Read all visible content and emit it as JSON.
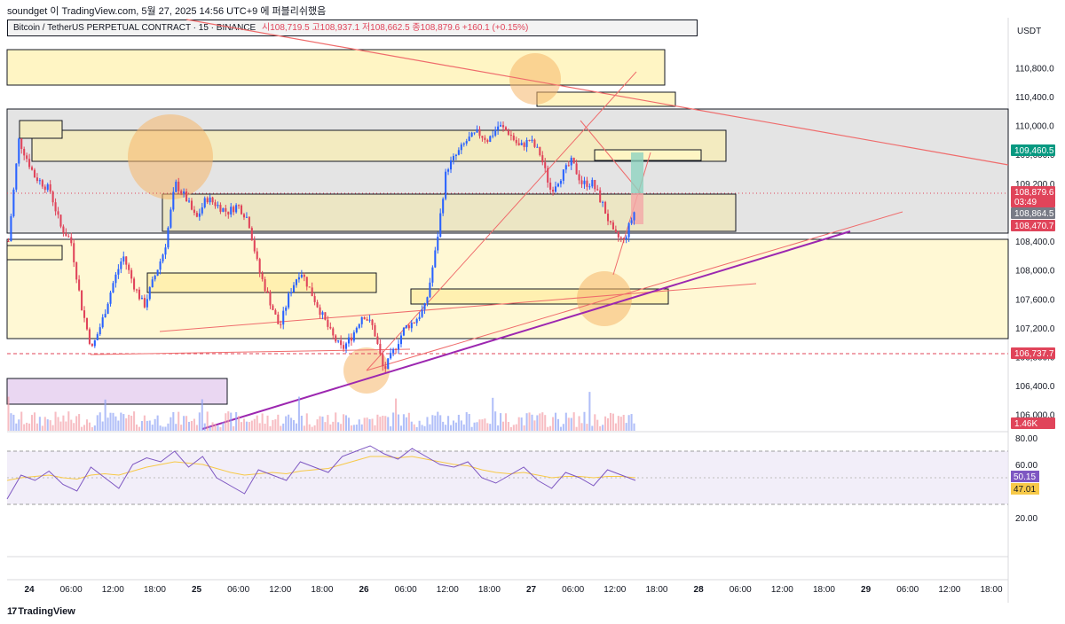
{
  "header": {
    "attribution": "soundget 이 TradingView.com, 5월 27, 2025 14:56 UTC+9 에 퍼블리쉬했음",
    "symbol": "Bitcoin / TetherUS PERPETUAL CONTRACT · 15 · BINANCE",
    "ohlc": "시108,719.5  고108,937.1  저108,662.5  종108,879.6  +160.1 (+0.15%)"
  },
  "price_axis": {
    "currency": "USDT",
    "ticks": [
      "110,800.0",
      "110,400.0",
      "110,000.0",
      "109,600.0",
      "109,200.0",
      "108,800.0",
      "108,400.0",
      "108,000.0",
      "107,600.0",
      "107,200.0",
      "106,800.0",
      "106,400.0",
      "106,000.0"
    ],
    "badges": [
      {
        "value": "109,460.5",
        "color": "#089981"
      },
      {
        "value": "108,879.6",
        "color": "#e0445a"
      },
      {
        "value": "03:49",
        "color": "#e0445a"
      },
      {
        "value": "108,864.5",
        "color": "#787b86"
      },
      {
        "value": "108,470.7",
        "color": "#e0445a"
      },
      {
        "value": "106,737.7",
        "color": "#e0445a"
      },
      {
        "value": "1.46K",
        "color": "#e0445a"
      }
    ]
  },
  "rsi_axis": {
    "ticks": [
      "80.00",
      "60.00",
      "20.00"
    ],
    "badges": [
      {
        "value": "50.15",
        "color": "#7e57c2"
      },
      {
        "value": "47.01",
        "color": "#f7c948"
      }
    ]
  },
  "time_axis": {
    "labels": [
      "24",
      "06:00",
      "12:00",
      "18:00",
      "25",
      "06:00",
      "12:00",
      "18:00",
      "26",
      "06:00",
      "12:00",
      "18:00",
      "27",
      "06:00",
      "12:00",
      "18:00",
      "28",
      "06:00",
      "12:00",
      "18:00",
      "29",
      "06:00",
      "12:00",
      "18:00"
    ]
  },
  "footer": {
    "logo": "TradingView",
    "logo_icon": "17"
  },
  "colors": {
    "bull": "#2962ff",
    "bear": "#e0445a",
    "zone_yellow": "#fff5c4",
    "zone_gray": "#e4e4e4",
    "trendline": "#ef6c6c",
    "purple": "#9c27b0",
    "rsi": "#7e57c2",
    "rsi_ma": "#f7c948"
  },
  "chart_data": {
    "type": "candlestick",
    "symbol": "Bitcoin / TetherUS PERPETUAL CONTRACT",
    "interval": "15",
    "exchange": "BINANCE",
    "ylim": [
      105900,
      111000
    ],
    "last_close": 108879.6,
    "key_levels": [
      106737.7,
      108470.7,
      108864.5,
      109460.5
    ],
    "price_path": [
      [
        0,
        108400
      ],
      [
        2,
        109800
      ],
      [
        5,
        109300
      ],
      [
        8,
        109100
      ],
      [
        10,
        108600
      ],
      [
        12,
        108400
      ],
      [
        14,
        107500
      ],
      [
        16,
        106900
      ],
      [
        18,
        107300
      ],
      [
        20,
        107800
      ],
      [
        22,
        108200
      ],
      [
        24,
        107800
      ],
      [
        26,
        107500
      ],
      [
        28,
        107900
      ],
      [
        30,
        108300
      ],
      [
        32,
        109200
      ],
      [
        34,
        109000
      ],
      [
        36,
        108700
      ],
      [
        38,
        109000
      ],
      [
        40,
        108900
      ],
      [
        42,
        108800
      ],
      [
        44,
        108900
      ],
      [
        46,
        108700
      ],
      [
        48,
        108000
      ],
      [
        50,
        107600
      ],
      [
        52,
        107200
      ],
      [
        54,
        107700
      ],
      [
        56,
        108000
      ],
      [
        58,
        107700
      ],
      [
        60,
        107400
      ],
      [
        62,
        107100
      ],
      [
        64,
        106900
      ],
      [
        66,
        107100
      ],
      [
        68,
        107400
      ],
      [
        70,
        107200
      ],
      [
        72,
        106600
      ],
      [
        74,
        106900
      ],
      [
        76,
        107200
      ],
      [
        78,
        107300
      ],
      [
        80,
        107500
      ],
      [
        82,
        108300
      ],
      [
        84,
        109400
      ],
      [
        86,
        109600
      ],
      [
        88,
        109800
      ],
      [
        90,
        109900
      ],
      [
        92,
        109800
      ],
      [
        94,
        110000
      ],
      [
        96,
        109900
      ],
      [
        98,
        109700
      ],
      [
        100,
        109800
      ],
      [
        102,
        109600
      ],
      [
        104,
        109100
      ],
      [
        106,
        109300
      ],
      [
        108,
        109500
      ],
      [
        110,
        109200
      ],
      [
        112,
        109200
      ],
      [
        114,
        108900
      ],
      [
        116,
        108500
      ],
      [
        118,
        108400
      ],
      [
        120,
        108800
      ]
    ],
    "rsi": {
      "ylim": [
        10,
        90
      ],
      "bands": [
        70,
        30
      ],
      "values": [
        34,
        52,
        48,
        55,
        45,
        40,
        58,
        50,
        42,
        60,
        65,
        62,
        70,
        58,
        66,
        50,
        44,
        38,
        56,
        52,
        48,
        62,
        58,
        54,
        66,
        70,
        74,
        68,
        64,
        72,
        66,
        60,
        58,
        62,
        50,
        46,
        52,
        58,
        48,
        42,
        54,
        50,
        44,
        56,
        52,
        48
      ],
      "ma_values": [
        48,
        50,
        51,
        52,
        50,
        49,
        52,
        53,
        52,
        55,
        58,
        60,
        62,
        61,
        60,
        57,
        54,
        52,
        53,
        54,
        53,
        55,
        56,
        57,
        60,
        63,
        66,
        66,
        65,
        66,
        64,
        62,
        60,
        59,
        56,
        54,
        53,
        54,
        52,
        50,
        51,
        51,
        50,
        51,
        51,
        50
      ]
    }
  }
}
